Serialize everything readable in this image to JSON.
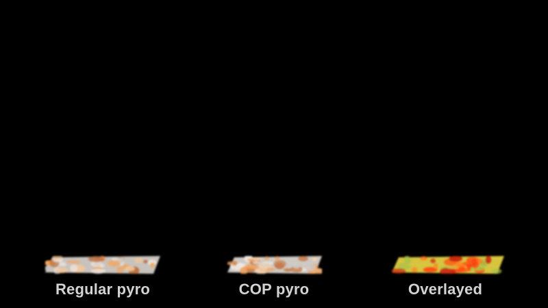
{
  "panels": [
    {
      "label": "Regular pyro",
      "palette": [
        "#f3a45a",
        "#c8c2bd",
        "#e9e3de",
        "#b86d3e",
        "#f0c79b"
      ]
    },
    {
      "label": "COP pyro",
      "palette": [
        "#f1a15b",
        "#cfc9c4",
        "#eeeae6",
        "#c57b49",
        "#f2d1ad"
      ]
    },
    {
      "label": "Overlayed",
      "palette": [
        "#ff4a12",
        "#d7c43f",
        "#a9c34a",
        "#ff7d20",
        "#c91f0c"
      ]
    }
  ],
  "background": "#000000",
  "label_color": "#d3d3d3"
}
